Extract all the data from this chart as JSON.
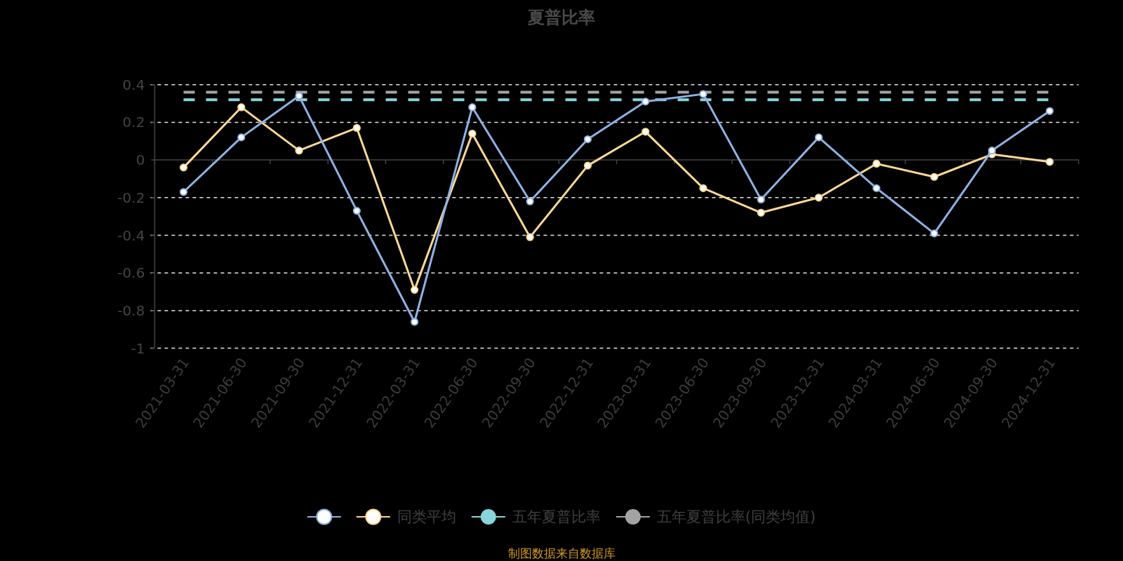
{
  "chart_data": {
    "type": "line",
    "title": "夏普比率",
    "categories": [
      "2021-03-31",
      "2021-06-30",
      "2021-09-30",
      "2021-12-31",
      "2022-03-31",
      "2022-06-30",
      "2022-09-30",
      "2022-12-31",
      "2023-03-31",
      "2023-06-30",
      "2023-09-30",
      "2023-12-31",
      "2024-03-31",
      "2024-06-30",
      "2024-09-30",
      "2024-12-31"
    ],
    "series": [
      {
        "color": "#8fb1e3",
        "values": [
          -0.17,
          0.12,
          0.34,
          -0.27,
          -0.86,
          0.28,
          -0.22,
          0.11,
          0.31,
          0.35,
          -0.21,
          0.12,
          -0.15,
          -0.39,
          0.05,
          0.26
        ]
      },
      {
        "name": "同类平均",
        "color": "#fdd894",
        "values": [
          -0.04,
          0.28,
          0.05,
          0.17,
          -0.69,
          0.14,
          -0.41,
          -0.03,
          0.15,
          -0.15,
          -0.28,
          -0.2,
          -0.02,
          -0.09,
          0.03,
          -0.01
        ]
      },
      {
        "name": "五年夏普比率",
        "color": "#88d5dc",
        "line_style": "dashed",
        "marker": "none",
        "values": [
          0.32,
          0.32,
          0.32,
          0.32,
          0.32,
          0.32,
          0.32,
          0.32,
          0.32,
          0.32,
          0.32,
          0.32,
          0.32,
          0.32,
          0.32,
          0.32
        ]
      },
      {
        "name": "五年夏普比率(同类均值)",
        "color": "#a3a3a3",
        "line_style": "dashed",
        "marker": "none",
        "values": [
          0.36,
          0.36,
          0.36,
          0.36,
          0.36,
          0.36,
          0.36,
          0.36,
          0.36,
          0.36,
          0.36,
          0.36,
          0.36,
          0.36,
          0.36,
          0.36
        ]
      }
    ],
    "ylim": [
      -1,
      0.4
    ],
    "yticks": [
      -1,
      -0.8,
      -0.6,
      -0.4,
      -0.2,
      0,
      0.2,
      0.4
    ],
    "grid": "y",
    "legend": "bottom",
    "marker": "circle",
    "line_style": "solid",
    "annotations": [
      "制图数据来自数据库"
    ]
  }
}
